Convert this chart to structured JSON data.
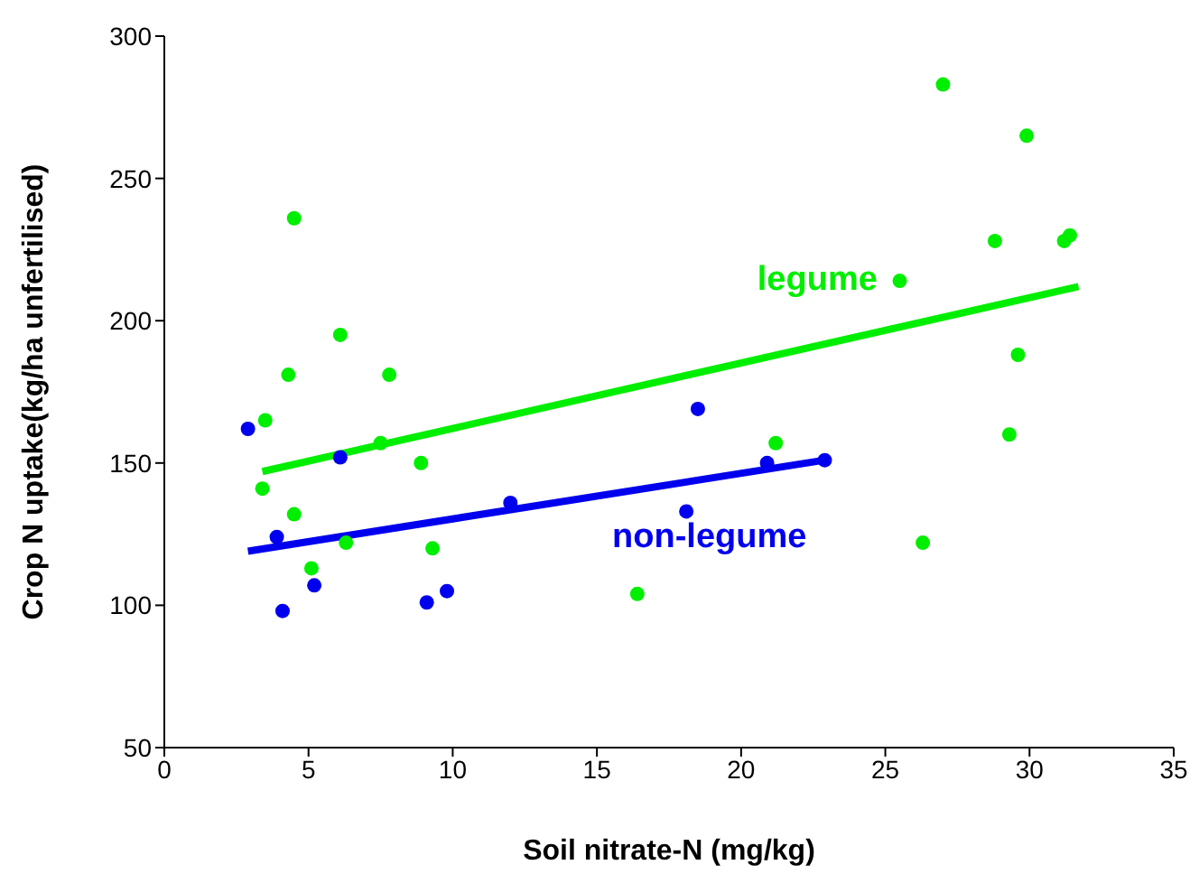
{
  "chart_data": {
    "type": "scatter",
    "xlabel": "Soil nitrate-N (mg/kg)",
    "ylabel": "Crop N uptake(kg/ha unfertilised)",
    "xlim": [
      0,
      35
    ],
    "xticks": [
      0,
      5,
      10,
      15,
      20,
      25,
      30,
      35
    ],
    "ylim": [
      50,
      300
    ],
    "yticks": [
      50,
      100,
      150,
      200,
      250,
      300
    ],
    "grid": false,
    "legend": false,
    "series": [
      {
        "name": "legume",
        "marker": "circle",
        "color": "#00ee00",
        "x": [
          4.5,
          6.1,
          4.3,
          7.8,
          3.5,
          7.5,
          3.4,
          4.5,
          6.3,
          9.3,
          5.1,
          8.9,
          27.0,
          29.9,
          28.8,
          31.4,
          31.2,
          25.5,
          29.6,
          29.3,
          21.2,
          26.3,
          16.4
        ],
        "values": [
          236,
          195,
          181,
          181,
          165,
          157,
          141,
          132,
          122,
          120,
          113,
          150,
          283,
          265,
          228,
          230,
          228,
          214,
          188,
          160,
          157,
          122,
          104
        ]
      },
      {
        "name": "non-legume",
        "marker": "circle",
        "color": "#0000ee",
        "x": [
          2.9,
          6.1,
          3.9,
          12.0,
          5.2,
          9.8,
          9.1,
          4.1,
          18.5,
          20.9,
          22.9,
          18.1
        ],
        "values": [
          162,
          152,
          124,
          136,
          107,
          105,
          101,
          98,
          169,
          150,
          151,
          133
        ]
      },
      {
        "type": "line",
        "marker": "none",
        "color": "#00ee00",
        "x": [
          3.4,
          31.7
        ],
        "values": [
          147,
          212
        ]
      },
      {
        "type": "line",
        "marker": "none",
        "color": "#0000ee",
        "x": [
          2.9,
          22.9
        ],
        "values": [
          119,
          151
        ]
      }
    ]
  }
}
